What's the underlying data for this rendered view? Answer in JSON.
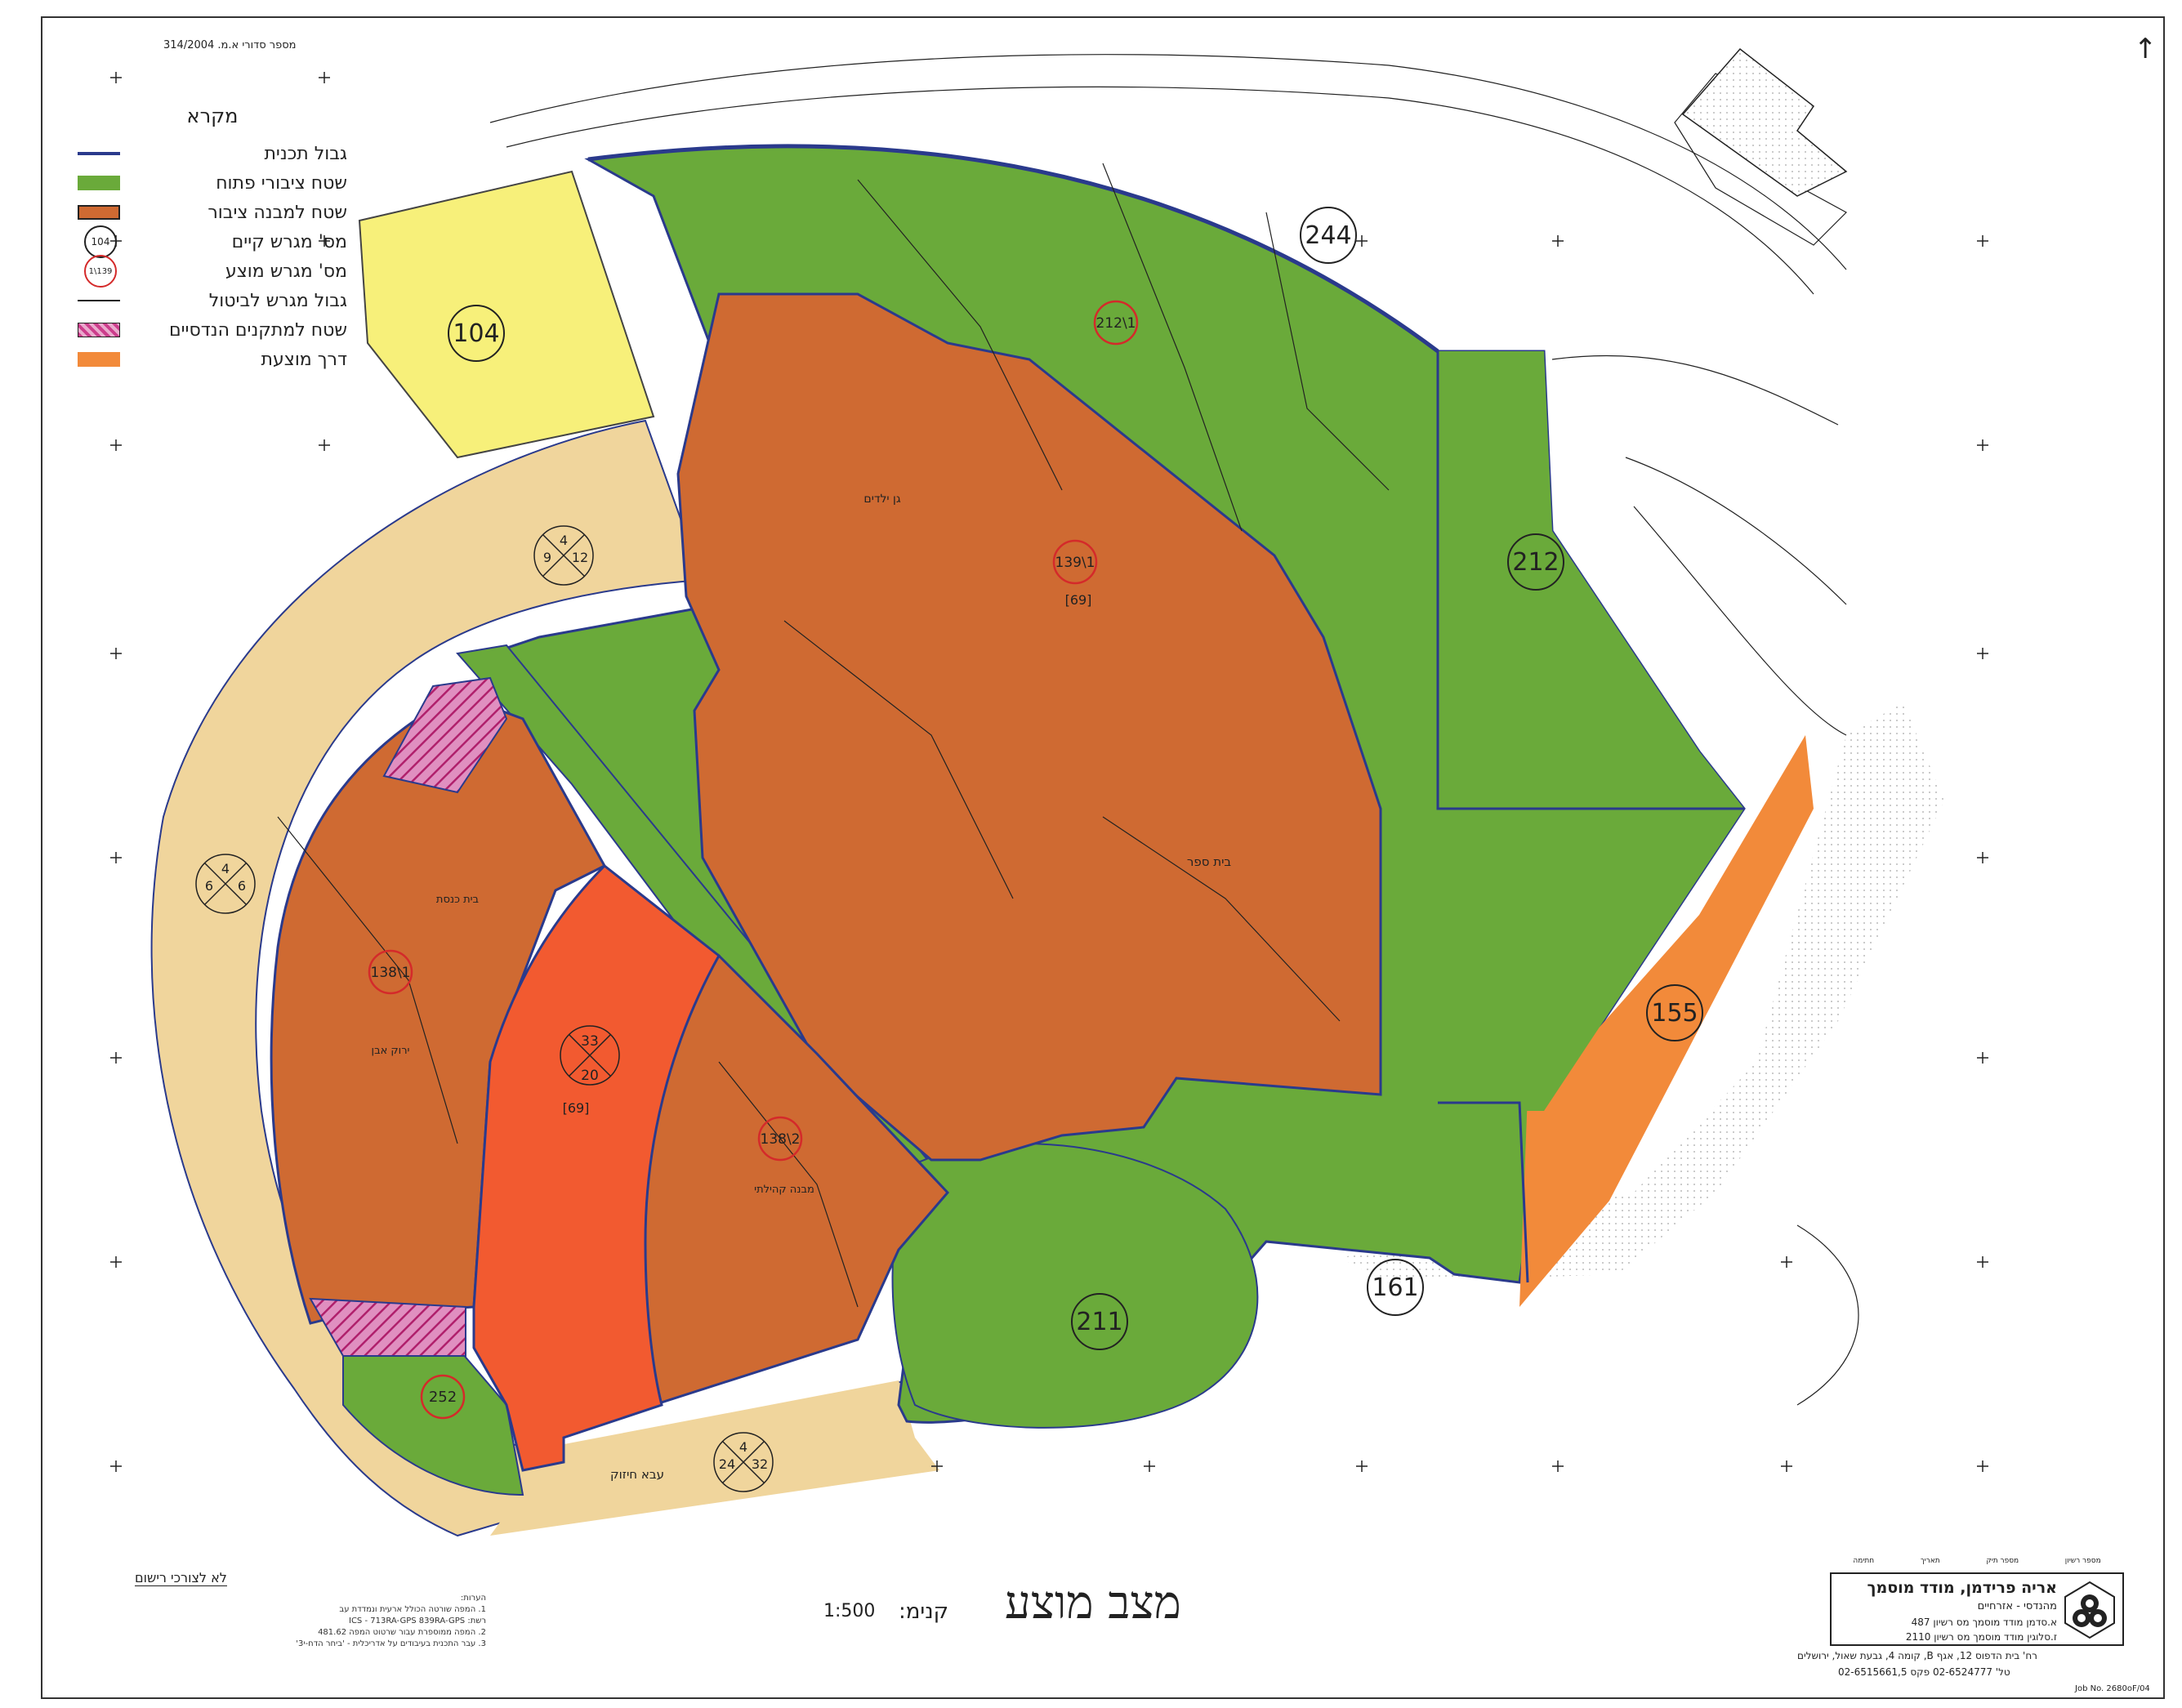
{
  "map": {
    "title": "מצב מוצע",
    "scale_label": "קנימ:",
    "scale_value": "1:500",
    "serial_number": "מספר סדורי א.מ. 314/2004",
    "not_for_registration": "לא לצורכי רישום",
    "notes": [
      "הערות:",
      "1. המפה שורטה הכולל ארעית ונמדדת עב",
      "רשת: ICS  -  713RA-GPS 839RA-GPS",
      "2. המפה ממוספרת עבור  שרטוט המפה 481.62",
      "3. עבר התכנית בעיבודים על אדריכלית - 'ביחר הדח-י3'"
    ],
    "legend": {
      "title": "מקרא",
      "items": [
        {
          "label": "גבול תכנית",
          "symbol": "line",
          "color": "#2a3a8c"
        },
        {
          "label": "שטח ציבורי פתוח",
          "symbol": "fill",
          "color": "#6aaa3a"
        },
        {
          "label": "שטח למבנה ציבור",
          "symbol": "fill",
          "color": "#cf6a32"
        },
        {
          "label": "מס' מגרש קיים",
          "symbol": "circle",
          "color": "#222222",
          "sample": "104"
        },
        {
          "label": "מס' מגרש מוצע",
          "symbol": "circle",
          "color": "#d42a2a",
          "sample": "139\\1"
        },
        {
          "label": "גבול מגרש לביטול",
          "symbol": "thin-line",
          "color": "#222222"
        },
        {
          "label": "שטח למתקנים הנדסיים",
          "symbol": "hatch",
          "color": "#cc3d8c"
        },
        {
          "label": "דרך מוצעת",
          "symbol": "fill",
          "color": "#f28a3a"
        }
      ]
    },
    "parcels": {
      "existing": [
        "104",
        "244",
        "212",
        "211",
        "161",
        "155"
      ],
      "proposed": [
        "212\\1",
        "139\\1",
        "138\\1",
        "138\\2",
        "252"
      ]
    },
    "area_labels": [
      "[69]",
      "[69]",
      "בית ספר",
      "גן ילדים",
      "בית כנסת",
      "מבנה קהילתי"
    ],
    "road_labels": [
      "ירוק אבן",
      "עבא חיזוק"
    ],
    "road_symbols": [
      {
        "top": "4",
        "left": "9",
        "right": "12"
      },
      {
        "top": "4",
        "left": "6",
        "right": "6"
      },
      {
        "top": "33",
        "left": "",
        "right": "20"
      },
      {
        "top": "4",
        "left": "24",
        "right": "32"
      }
    ],
    "colors": {
      "open_space": "#6aaa3a",
      "public_building": "#cf6a32",
      "proposed_road": "#f28a3a",
      "existing_road": "#f0d59c",
      "red_road": "#f25a30",
      "lot_104": "#f7f07a",
      "engineering": "#cc3d8c",
      "boundary": "#2a3a8c"
    }
  },
  "surveyor": {
    "name": "אריה פרידמן, מודד מוסמך",
    "subtitle": "מהנדסי - אזרחיים",
    "license1": "א.סדמן מודד מוסמך מס רשיון 487",
    "license2": "ז.סלוגין מודד מוסמך מס רשיון 2110",
    "header": [
      "מספר רשיון",
      "מספר תיק",
      "תאריך",
      "חתימה"
    ],
    "address": "רח' בית הדפוס 12, אגף B, קומה 4, גבעת שאול, ירושלים",
    "phones": "טל' 02-6524777  פקס 02-6515661,5",
    "job_no": "Job No. 2680oF/04"
  }
}
